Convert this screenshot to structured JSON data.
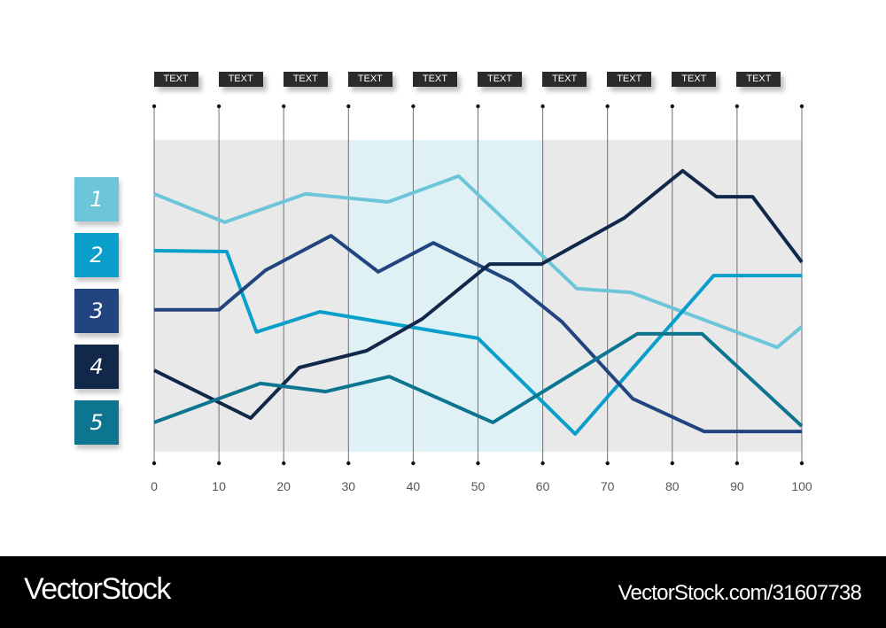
{
  "chart_data": {
    "type": "line",
    "title": "",
    "xlabel": "",
    "ylabel": "",
    "xlim": [
      0,
      100
    ],
    "ylim": [
      0,
      100
    ],
    "x_ticks": [
      0,
      10,
      20,
      30,
      40,
      50,
      60,
      70,
      80,
      90,
      100
    ],
    "top_labels": [
      "TEXT",
      "TEXT",
      "TEXT",
      "TEXT",
      "TEXT",
      "TEXT",
      "TEXT",
      "TEXT",
      "TEXT",
      "TEXT"
    ],
    "highlight_band": [
      30,
      60
    ],
    "grid": "vertical",
    "legend_position": "left",
    "series": [
      {
        "name": "1",
        "color": "#6CC5D9",
        "x": [
          0,
          10.9,
          23.4,
          36.1,
          47.0,
          65.3,
          73.6,
          96.2,
          100
        ],
        "values": [
          82.7,
          73.6,
          82.7,
          80.1,
          88.4,
          52.3,
          51.1,
          33.5,
          40.1
        ]
      },
      {
        "name": "2",
        "color": "#0A9FCB",
        "x": [
          0,
          11.2,
          15.8,
          25.6,
          50,
          65.0,
          86.4,
          100
        ],
        "values": [
          64.5,
          64.2,
          38.4,
          44.9,
          36.4,
          5.7,
          56.5,
          56.5
        ]
      },
      {
        "name": "3",
        "color": "#22457F",
        "x": [
          0,
          10,
          17.2,
          27.3,
          34.6,
          43.1,
          55.3,
          62.9,
          73.9,
          84.9,
          100
        ],
        "values": [
          45.5,
          45.5,
          58.2,
          69.3,
          57.7,
          67.0,
          54.5,
          41.8,
          17.0,
          6.5,
          6.5
        ]
      },
      {
        "name": "4",
        "color": "#12284A",
        "x": [
          0,
          14.9,
          22.4,
          32.8,
          41.4,
          51.8,
          59.8,
          72.6,
          81.6,
          86.8,
          92.4,
          100
        ],
        "values": [
          26.1,
          10.8,
          27.0,
          32.4,
          42.6,
          60.2,
          60.2,
          75.0,
          90.1,
          81.8,
          81.8,
          60.8
        ]
      },
      {
        "name": "5",
        "color": "#0E7590",
        "x": [
          0,
          16.4,
          26.5,
          36.3,
          52.3,
          74.6,
          84.6,
          100
        ],
        "values": [
          9.4,
          21.9,
          19.3,
          24.1,
          9.4,
          37.8,
          37.8,
          8.2
        ]
      }
    ]
  },
  "legend": [
    {
      "label": "1",
      "color": "#6CC5D9"
    },
    {
      "label": "2",
      "color": "#0A9FCB"
    },
    {
      "label": "3",
      "color": "#22457F"
    },
    {
      "label": "4",
      "color": "#12284A"
    },
    {
      "label": "5",
      "color": "#0E7590"
    }
  ],
  "colors": {
    "plot_bg": "#E9E9E9",
    "highlight_bg": "#DFF1F5",
    "grid": "#707070"
  },
  "footer": {
    "brand": "VectorStock",
    "url": "VectorStock.com/31607738"
  }
}
